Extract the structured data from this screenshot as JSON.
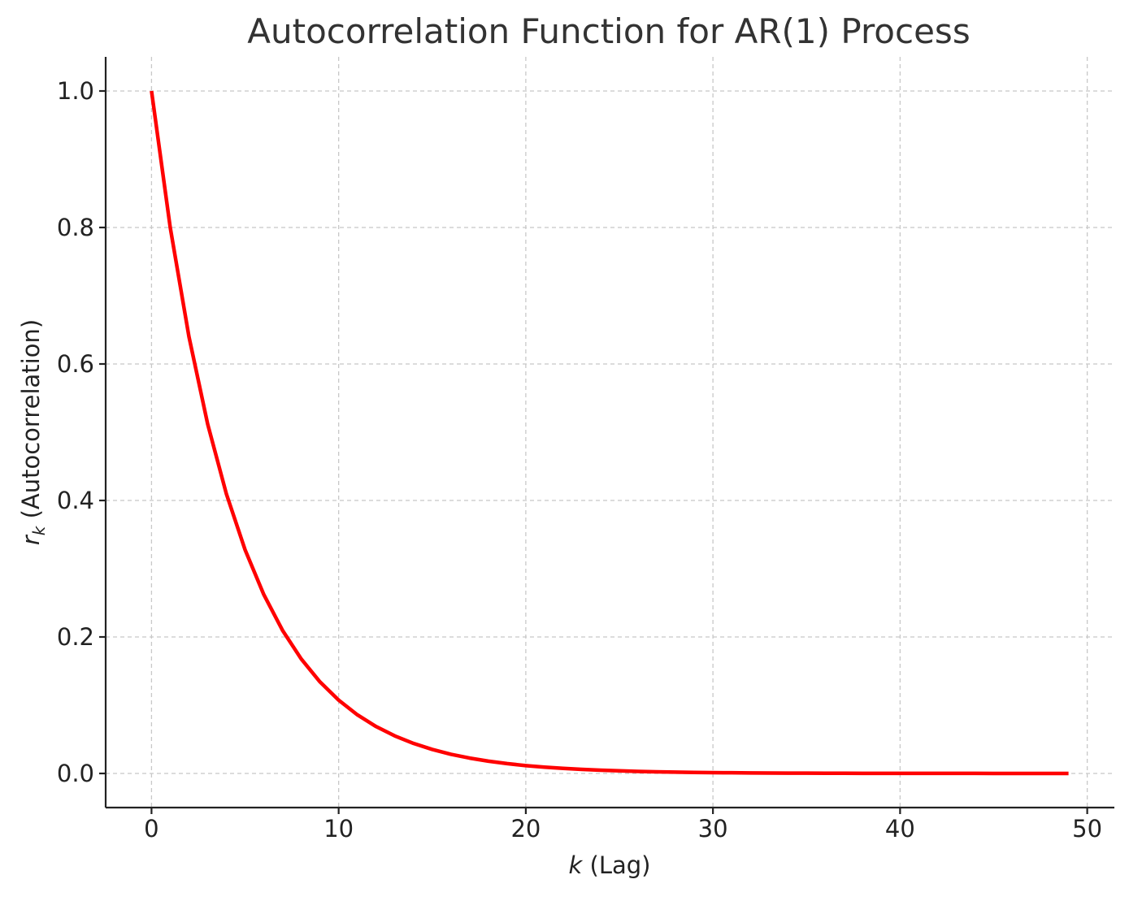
{
  "chart_data": {
    "type": "line",
    "title": "Autocorrelation Function for AR(1) Process",
    "xlabel_var": "k",
    "xlabel_text": " (Lag)",
    "ylabel_var": "r",
    "ylabel_sub": "k",
    "ylabel_text": " (Autocorrelation)",
    "xlim": [
      -2.45,
      51.45
    ],
    "ylim": [
      -0.05,
      1.05
    ],
    "xticks": [
      0,
      10,
      20,
      30,
      40,
      50
    ],
    "yticks": [
      0.0,
      0.2,
      0.4,
      0.6,
      0.8,
      1.0
    ],
    "xtick_labels": [
      "0",
      "10",
      "20",
      "30",
      "40",
      "50"
    ],
    "ytick_labels": [
      "0.0",
      "0.2",
      "0.4",
      "0.6",
      "0.8",
      "1.0"
    ],
    "grid": true,
    "colors": {
      "line": "#ff0000",
      "axis": "#222222",
      "grid": "#c8c8c8",
      "title": "#333333"
    },
    "series": [
      {
        "x": [
          0,
          1,
          2,
          3,
          4,
          5,
          6,
          7,
          8,
          9,
          10,
          11,
          12,
          13,
          14,
          15,
          16,
          17,
          18,
          19,
          20,
          21,
          22,
          23,
          24,
          25,
          26,
          27,
          28,
          29,
          30,
          31,
          32,
          33,
          34,
          35,
          36,
          37,
          38,
          39,
          40,
          41,
          42,
          43,
          44,
          45,
          46,
          47,
          48,
          49
        ],
        "values": [
          1.0,
          0.8,
          0.64,
          0.512,
          0.4096,
          0.3277,
          0.2621,
          0.2097,
          0.1678,
          0.1342,
          0.1074,
          0.0859,
          0.0687,
          0.055,
          0.044,
          0.0352,
          0.0281,
          0.0225,
          0.018,
          0.0144,
          0.0115,
          0.0092,
          0.0074,
          0.0059,
          0.0047,
          0.0038,
          0.003,
          0.0024,
          0.0019,
          0.0015,
          0.0012,
          0.001,
          0.0008,
          0.0006,
          0.0005,
          0.0004,
          0.0003,
          0.0003,
          0.0002,
          0.0002,
          0.0001,
          0.0001,
          0.0001,
          0.0001,
          0.0001,
          0.0,
          0.0,
          0.0,
          0.0,
          0.0
        ]
      }
    ]
  }
}
